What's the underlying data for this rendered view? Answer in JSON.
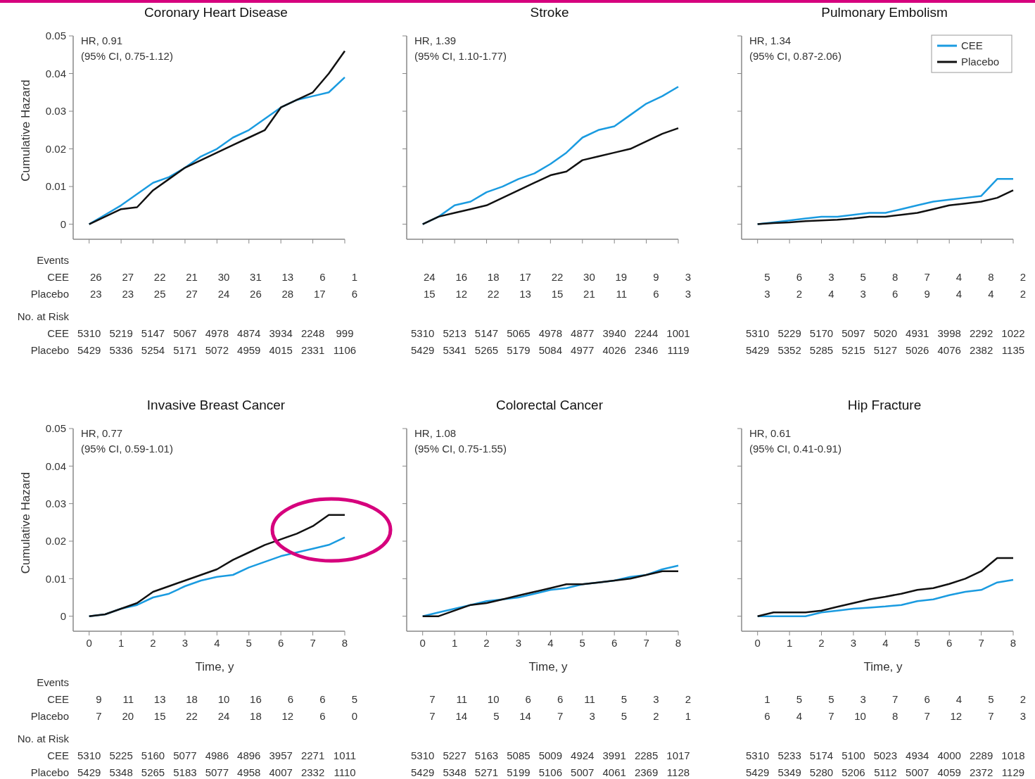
{
  "chart_data": [
    {
      "type": "line",
      "title": "Coronary Heart Disease",
      "ylabel": "Cumulative Hazard",
      "x": [
        0,
        0.5,
        1,
        1.5,
        2,
        2.5,
        3,
        3.5,
        4,
        4.5,
        5,
        5.5,
        6,
        6.5,
        7,
        7.5,
        8
      ],
      "xlim": [
        -0.5,
        8
      ],
      "ylim": [
        -0.004,
        0.05
      ],
      "xticks": [
        0,
        1,
        2,
        3,
        4,
        5,
        6,
        7,
        8
      ],
      "yticks": [
        0,
        0.01,
        0.02,
        0.03,
        0.04,
        0.05
      ],
      "tick_labels": "y",
      "series": [
        {
          "color": "#1a9be0",
          "values": [
            0,
            0.0025,
            0.005,
            0.008,
            0.011,
            0.0125,
            0.015,
            0.018,
            0.02,
            0.023,
            0.025,
            0.028,
            0.031,
            0.033,
            0.034,
            0.035,
            0.039
          ]
        },
        {
          "color": "#111111",
          "values": [
            0,
            0.002,
            0.004,
            0.0045,
            0.009,
            0.012,
            0.015,
            0.017,
            0.019,
            0.021,
            0.023,
            0.025,
            0.031,
            0.033,
            0.035,
            0.04,
            0.046
          ]
        }
      ],
      "annotations": [
        "HR, 0.91",
        "(95% CI, 0.75-1.12)",
        "26 27 22 21 30 31 13 6 1",
        "23 23 25 27 24 26 28 17 6",
        "5310 5219 5147 5067 4978 4874 3934 2248 999",
        "5429 5336 5254 5171 5072 4959 4015 2331 1106",
        "Events",
        "CEE",
        "Placebo",
        "No. at Risk",
        "CEE",
        "Placebo"
      ]
    },
    {
      "type": "line",
      "title": "Stroke",
      "x": [
        0,
        0.5,
        1,
        1.5,
        2,
        2.5,
        3,
        3.5,
        4,
        4.5,
        5,
        5.5,
        6,
        6.5,
        7,
        7.5,
        8
      ],
      "xlim": [
        -0.5,
        8
      ],
      "ylim": [
        -0.004,
        0.05
      ],
      "xticks": [
        0,
        1,
        2,
        3,
        4,
        5,
        6,
        7,
        8
      ],
      "yticks": [
        0,
        0.01,
        0.02,
        0.03,
        0.04,
        0.05
      ],
      "tick_labels": false,
      "series": [
        {
          "color": "#1a9be0",
          "values": [
            0,
            0.002,
            0.005,
            0.006,
            0.0085,
            0.01,
            0.012,
            0.0135,
            0.016,
            0.019,
            0.023,
            0.025,
            0.026,
            0.029,
            0.032,
            0.034,
            0.0365
          ]
        },
        {
          "color": "#111111",
          "values": [
            0,
            0.002,
            0.003,
            0.004,
            0.005,
            0.007,
            0.009,
            0.011,
            0.013,
            0.014,
            0.017,
            0.018,
            0.019,
            0.02,
            0.022,
            0.024,
            0.0255
          ]
        }
      ],
      "annotations": [
        "HR, 1.39",
        "(95% CI, 1.10-1.77)",
        "24 16 18 17 22 30 19 9 3",
        "15 12 22 13 15 21 11 6 3",
        "5310 5213 5147 5065 4978 4877 3940 2244 1001",
        "5429 5341 5265 5179 5084 4977 4026 2346 1119"
      ]
    },
    {
      "type": "line",
      "title": "Pulmonary Embolism",
      "x": [
        0,
        0.5,
        1,
        1.5,
        2,
        2.5,
        3,
        3.5,
        4,
        4.5,
        5,
        5.5,
        6,
        6.5,
        7,
        7.5,
        8
      ],
      "xlim": [
        -0.5,
        8
      ],
      "ylim": [
        -0.004,
        0.05
      ],
      "xticks": [
        0,
        1,
        2,
        3,
        4,
        5,
        6,
        7,
        8
      ],
      "yticks": [
        0,
        0.01,
        0.02,
        0.03,
        0.04,
        0.05
      ],
      "tick_labels": false,
      "legend": "top right",
      "series": [
        {
          "name": "CEE",
          "color": "#1a9be0",
          "values": [
            0,
            0.0005,
            0.001,
            0.0015,
            0.002,
            0.002,
            0.0025,
            0.003,
            0.003,
            0.004,
            0.005,
            0.006,
            0.0065,
            0.007,
            0.0075,
            0.012,
            0.012
          ]
        },
        {
          "name": "Placebo",
          "color": "#111111",
          "values": [
            0,
            0.0003,
            0.0005,
            0.0008,
            0.001,
            0.0012,
            0.0015,
            0.002,
            0.002,
            0.0025,
            0.003,
            0.004,
            0.005,
            0.0055,
            0.006,
            0.007,
            0.009
          ]
        }
      ],
      "annotations": [
        "HR, 1.34",
        "(95% CI, 0.87-2.06)",
        "5 6 3 5 8 7 4 8 2",
        "3 2 4 3 6 9 4 4 2",
        "5310 5229 5170 5097 5020 4931 3998 2292 1022",
        "5429 5352 5285 5215 5127 5026 4076 2382 1135"
      ]
    },
    {
      "type": "line",
      "title": "Invasive Breast Cancer",
      "ylabel": "Cumulative Hazard",
      "xlabel": "Time, y",
      "x": [
        0,
        0.5,
        1,
        1.5,
        2,
        2.5,
        3,
        3.5,
        4,
        4.5,
        5,
        5.5,
        6,
        6.5,
        7,
        7.5,
        8
      ],
      "xlim": [
        -0.5,
        8
      ],
      "ylim": [
        -0.004,
        0.05
      ],
      "xticks": [
        0,
        1,
        2,
        3,
        4,
        5,
        6,
        7,
        8
      ],
      "yticks": [
        0,
        0.01,
        0.02,
        0.03,
        0.04,
        0.05
      ],
      "series": [
        {
          "color": "#1a9be0",
          "values": [
            0,
            0.0005,
            0.002,
            0.003,
            0.005,
            0.006,
            0.008,
            0.0095,
            0.0105,
            0.011,
            0.013,
            0.0145,
            0.016,
            0.017,
            0.018,
            0.019,
            0.021
          ]
        },
        {
          "color": "#111111",
          "values": [
            0,
            0.0005,
            0.002,
            0.0035,
            0.0065,
            0.008,
            0.0095,
            0.011,
            0.0125,
            0.015,
            0.017,
            0.019,
            0.0205,
            0.022,
            0.024,
            0.027,
            0.027
          ]
        }
      ],
      "annotations": [
        "HR, 0.77",
        "(95% CI, 0.59-1.01)",
        "9 11 13 18 10 16 6 6 5",
        "7 20 15 22 24 18 12 6 0",
        "5310 5225 5160 5077 4986 4896 3957 2271 1011",
        "5429 5348 5265 5183 5077 4958 4007 2332 1110",
        "Events",
        "CEE",
        "Placebo",
        "No. at Risk",
        "CEE",
        "Placebo"
      ]
    },
    {
      "type": "line",
      "title": "Colorectal Cancer",
      "xlabel": "Time, y",
      "x": [
        0,
        0.5,
        1,
        1.5,
        2,
        2.5,
        3,
        3.5,
        4,
        4.5,
        5,
        5.5,
        6,
        6.5,
        7,
        7.5,
        8
      ],
      "xlim": [
        -0.5,
        8
      ],
      "ylim": [
        -0.004,
        0.05
      ],
      "xticks": [
        0,
        1,
        2,
        3,
        4,
        5,
        6,
        7,
        8
      ],
      "yticks": [
        0,
        0.01,
        0.02,
        0.03,
        0.04,
        0.05
      ],
      "tick_labels": "x",
      "series": [
        {
          "color": "#1a9be0",
          "values": [
            0,
            0.001,
            0.002,
            0.003,
            0.004,
            0.0045,
            0.005,
            0.006,
            0.007,
            0.0075,
            0.0085,
            0.009,
            0.0095,
            0.0105,
            0.011,
            0.0125,
            0.0135
          ]
        },
        {
          "color": "#111111",
          "values": [
            0,
            0,
            0.0015,
            0.003,
            0.0035,
            0.0045,
            0.0055,
            0.0065,
            0.0075,
            0.0085,
            0.0085,
            0.009,
            0.0095,
            0.01,
            0.011,
            0.012,
            0.012
          ]
        }
      ],
      "annotations": [
        "HR, 1.08",
        "(95% CI, 0.75-1.55)",
        "7 11 10 6 6 11 5 3 2",
        "7 14 5 14 7 3 5 2 1",
        "5310 5227 5163 5085 5009 4924 3991 2285 1017",
        "5429 5348 5271 5199 5106 5007 4061 2369 1128"
      ]
    },
    {
      "type": "line",
      "title": "Hip Fracture",
      "xlabel": "Time, y",
      "x": [
        0,
        0.5,
        1,
        1.5,
        2,
        2.5,
        3,
        3.5,
        4,
        4.5,
        5,
        5.5,
        6,
        6.5,
        7,
        7.5,
        8
      ],
      "xlim": [
        -0.5,
        8
      ],
      "ylim": [
        -0.004,
        0.05
      ],
      "xticks": [
        0,
        1,
        2,
        3,
        4,
        5,
        6,
        7,
        8
      ],
      "yticks": [
        0,
        0.01,
        0.02,
        0.03,
        0.04,
        0.05
      ],
      "tick_labels": "x",
      "series": [
        {
          "color": "#1a9be0",
          "values": [
            0,
            0,
            0,
            0,
            0.001,
            0.0015,
            0.002,
            0.0023,
            0.0026,
            0.003,
            0.004,
            0.0045,
            0.0056,
            0.0065,
            0.007,
            0.009,
            0.0097
          ]
        },
        {
          "color": "#111111",
          "values": [
            0,
            0.001,
            0.001,
            0.001,
            0.0015,
            0.0025,
            0.0035,
            0.0045,
            0.0052,
            0.006,
            0.007,
            0.0075,
            0.0086,
            0.01,
            0.012,
            0.0155,
            0.0155
          ]
        }
      ],
      "annotations": [
        "HR, 0.61",
        "(95% CI, 0.41-0.91)",
        "1 5 5 3 7 6 4 5 2",
        "6 4 7 10 8 7 12 7 3",
        "5310 5233 5174 5100 5023 4934 4000 2289 1018",
        "5429 5349 5280 5206 5112 5007 4059 2372 1129"
      ]
    }
  ]
}
